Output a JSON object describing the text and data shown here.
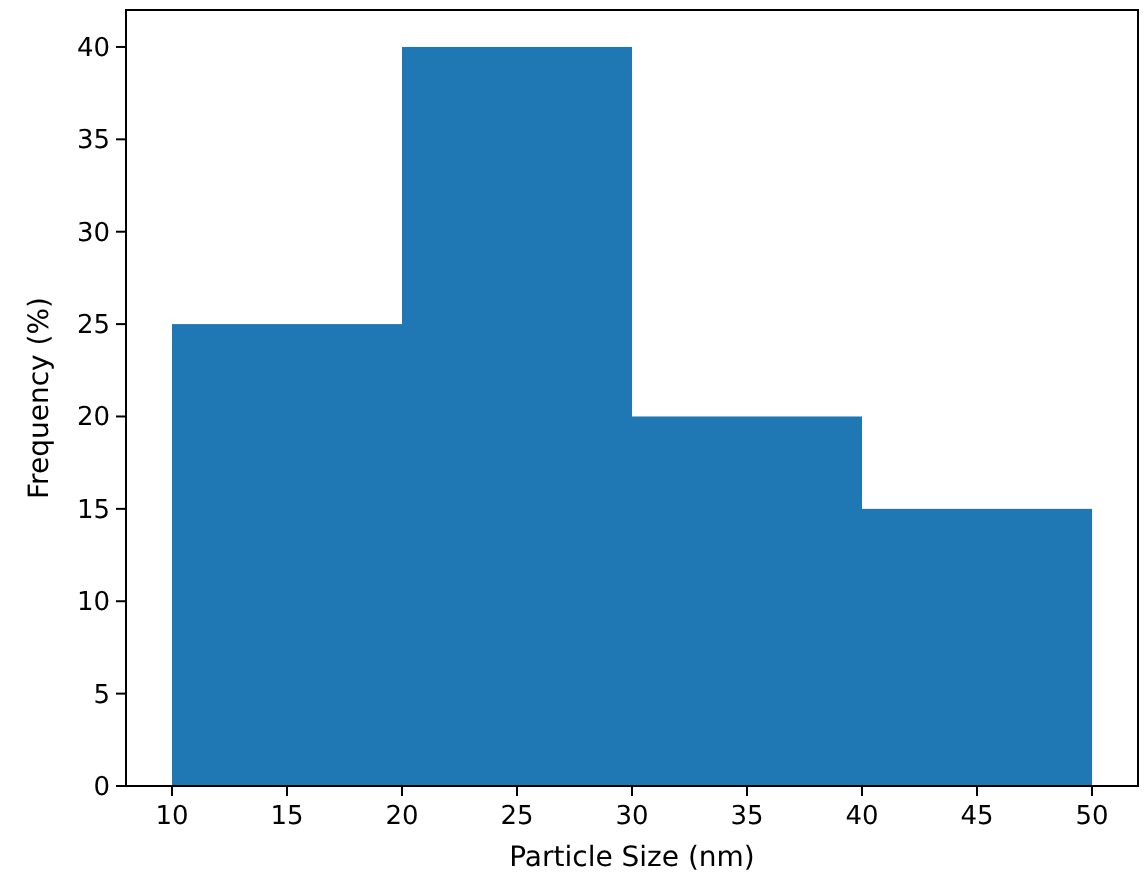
{
  "chart_data": {
    "type": "histogram",
    "xlabel": "Particle Size (nm)",
    "ylabel": "Frequency (%)",
    "bins": [
      10,
      20,
      30,
      40,
      50
    ],
    "values": [
      25,
      40,
      20,
      15
    ],
    "color": "#1f77b4",
    "xlim": [
      8,
      52
    ],
    "xticks": [
      10,
      15,
      20,
      25,
      30,
      35,
      40,
      45,
      50
    ],
    "ylim": [
      0,
      42
    ],
    "yticks": [
      0,
      5,
      10,
      15,
      20,
      25,
      30,
      35,
      40
    ],
    "grid": false
  }
}
